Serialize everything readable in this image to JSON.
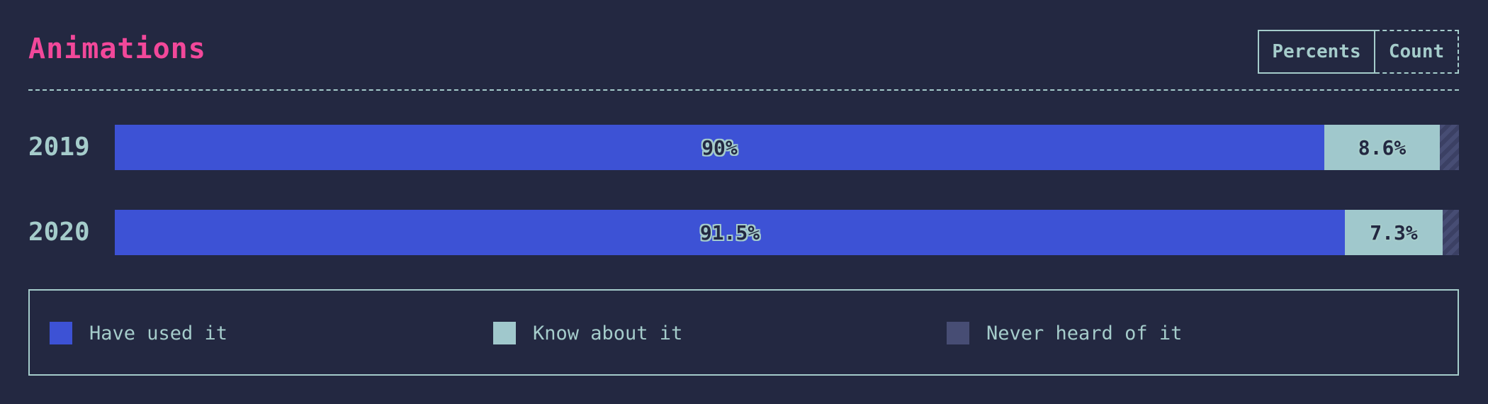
{
  "header": {
    "title": "Animations",
    "toggle": {
      "percents_label": "Percents",
      "count_label": "Count",
      "active": "percents"
    }
  },
  "colors": {
    "background": "#232841",
    "title": "#f2489a",
    "text": "#a5cccb",
    "have_used": "#3d52d5",
    "know_about": "#a0c8cc",
    "never_heard": "#474d74"
  },
  "chart_data": {
    "type": "bar",
    "orientation": "horizontal",
    "stacked": true,
    "normalized_percent": true,
    "title": "Animations",
    "categories": [
      "2019",
      "2020"
    ],
    "series": [
      {
        "name": "Have used it",
        "values": [
          90,
          91.5
        ],
        "labels": [
          "90%",
          "91.5%"
        ]
      },
      {
        "name": "Know about it",
        "values": [
          8.6,
          7.3
        ],
        "labels": [
          "8.6%",
          "7.3%"
        ]
      },
      {
        "name": "Never heard of it",
        "values": [
          1.4,
          1.2
        ],
        "labels": [
          "",
          ""
        ]
      }
    ],
    "xlim": [
      0,
      100
    ],
    "grid": false,
    "legend_position": "bottom"
  },
  "legend": {
    "items": [
      {
        "label": "Have used it",
        "icon": "square-swatch"
      },
      {
        "label": "Know about it",
        "icon": "square-swatch"
      },
      {
        "label": "Never heard of it",
        "icon": "square-swatch"
      }
    ]
  }
}
